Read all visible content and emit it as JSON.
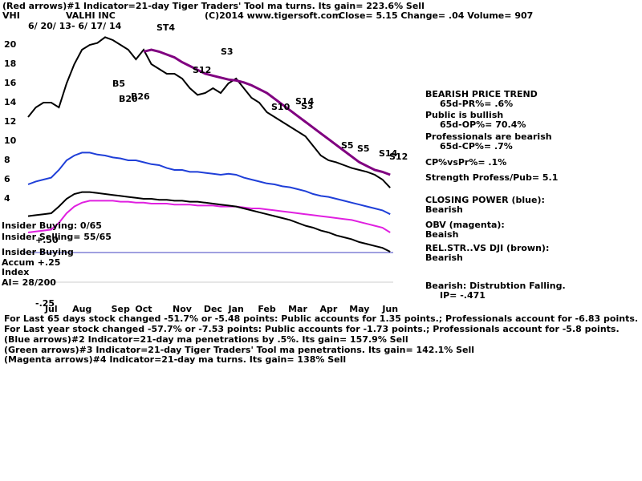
{
  "chart_data": {
    "type": "line",
    "annotations": [
      "(Red arrows)#1 Indicator=21-day Tiger Traders' Tool ma turns. Its gain= 223.6% Sell",
      "VHI",
      "VALHI INC",
      "(C)2014 www.tigersoft.com",
      "Close=   5.15  Change= .04 Volume= 907",
      "6/ 20/ 13- 6/ 17/ 14",
      "BEARISH PRICE TREND",
      "65d-PR%= .6%",
      "Public is bullish",
      "65d-OP%= 70.4%",
      "Professionals are bearish",
      "65d-CP%= .7%",
      "CP%vsPr%=  .1%",
      "Strength Profess/Pub= 5.1",
      "CLOSING POWER (blue):",
      "Bearish",
      "OBV (magenta):",
      "Beaish",
      "REL.STR..VS DJI (brown):",
      "Bearish",
      "Bearish: Distrubtion Falling.",
      "IP= -.471",
      "Insider Buying: 0/65",
      "Insider Selling= 55/65",
      "+.50",
      "Insider Buying",
      "Accum  +.25",
      "Index",
      "AI= 28/200",
      "-.25",
      "For Last 65 days stock changed -51.7% or -5.48 points:  Public accounts for  1.35 points.;  Professionals account for -6.83 points.",
      "For Last year stock changed -57.7% or -7.53 points:  Public accounts for -1.73 points.;  Professionals account for -5.8 points.",
      "(Blue arrows)#2 Indicator=21-day ma penetrations by .5%. Its gain= 157.9% Sell",
      "(Green arrows)#3 Indicator=21-day Tiger Traders' Tool ma penetrations. Its gain= 142.1% Sell",
      "(Magenta arrows)#4 Indicator=21-day ma turns. Its gain= 138% Sell",
      "ST4",
      "S3",
      "B5",
      "B20",
      "B26",
      "S12",
      "S10",
      "S14",
      "S3",
      "S5",
      "S5",
      "S14",
      "S12"
    ],
    "categories": [
      null,
      null,
      null,
      "Jul",
      null,
      null,
      null,
      "Aug",
      null,
      null,
      null,
      null,
      "Sep",
      null,
      null,
      "Oct",
      null,
      null,
      null,
      null,
      "Nov",
      null,
      null,
      null,
      "Dec",
      null,
      null,
      "Jan",
      null,
      null,
      null,
      "Feb",
      null,
      null,
      null,
      "Mar",
      null,
      null,
      null,
      "Apr",
      null,
      null,
      null,
      "May",
      null,
      null,
      null,
      "Jun"
    ],
    "ylim": [
      -7,
      23
    ],
    "yticks": [
      4,
      6,
      8,
      10,
      12,
      14,
      16,
      18,
      20
    ],
    "series": [
      {
        "color": "#000000",
        "values": [
          12.5,
          13.5,
          14,
          14,
          13.5,
          16,
          18,
          19.5,
          20,
          20.2,
          20.8,
          20.5,
          20,
          19.5,
          18.5,
          19.5,
          18,
          17.5,
          17,
          17,
          16.5,
          15.5,
          14.8,
          15,
          15.5,
          15,
          16,
          16.5,
          15.5,
          14.5,
          14,
          13,
          12.5,
          12,
          11.5,
          11,
          10.5,
          9.5,
          8.5,
          8,
          7.8,
          7.5,
          7.2,
          7,
          6.8,
          6.5,
          6,
          5.15
        ]
      },
      {
        "color": "#800080",
        "values": [
          null,
          null,
          null,
          null,
          null,
          null,
          null,
          null,
          null,
          null,
          null,
          null,
          null,
          null,
          null,
          19.3,
          19.5,
          19.3,
          19,
          18.7,
          18.2,
          17.8,
          17.4,
          17,
          16.8,
          16.6,
          16.4,
          16.3,
          16.1,
          15.8,
          15.4,
          15,
          14.4,
          13.8,
          13.2,
          12.6,
          12,
          11.4,
          10.8,
          10.2,
          9.6,
          9,
          8.4,
          7.8,
          7.4,
          7,
          6.8,
          6.5
        ]
      },
      {
        "color": "#1f3fd8",
        "values": [
          5.5,
          5.8,
          6,
          6.2,
          7,
          8,
          8.5,
          8.8,
          8.8,
          8.6,
          8.5,
          8.3,
          8.2,
          8,
          8,
          7.8,
          7.6,
          7.5,
          7.2,
          7,
          7,
          6.8,
          6.8,
          6.7,
          6.6,
          6.5,
          6.6,
          6.5,
          6.2,
          6,
          5.8,
          5.6,
          5.5,
          5.3,
          5.2,
          5,
          4.8,
          4.5,
          4.3,
          4.2,
          4,
          3.8,
          3.6,
          3.4,
          3.2,
          3,
          2.8,
          2.4
        ]
      },
      {
        "color": "#e020e0",
        "values": [
          0.5,
          0.6,
          0.7,
          0.8,
          1.5,
          2.5,
          3.2,
          3.6,
          3.8,
          3.8,
          3.8,
          3.8,
          3.7,
          3.7,
          3.6,
          3.6,
          3.5,
          3.5,
          3.5,
          3.4,
          3.4,
          3.4,
          3.3,
          3.3,
          3.3,
          3.2,
          3.2,
          3.2,
          3.1,
          3,
          3,
          2.9,
          2.8,
          2.7,
          2.6,
          2.5,
          2.4,
          2.3,
          2.2,
          2.1,
          2,
          1.9,
          1.8,
          1.6,
          1.4,
          1.2,
          1,
          0.5
        ]
      },
      {
        "color": "#000000",
        "values": [
          2.2,
          2.3,
          2.4,
          2.5,
          3.2,
          4,
          4.5,
          4.7,
          4.7,
          4.6,
          4.5,
          4.4,
          4.3,
          4.2,
          4.1,
          4,
          4,
          3.9,
          3.9,
          3.8,
          3.8,
          3.7,
          3.7,
          3.6,
          3.5,
          3.4,
          3.3,
          3.2,
          3,
          2.8,
          2.6,
          2.4,
          2.2,
          2,
          1.8,
          1.5,
          1.2,
          1,
          0.7,
          0.5,
          0.2,
          0,
          -0.2,
          -0.5,
          -0.7,
          -0.9,
          -1.1,
          -1.5
        ]
      }
    ]
  }
}
